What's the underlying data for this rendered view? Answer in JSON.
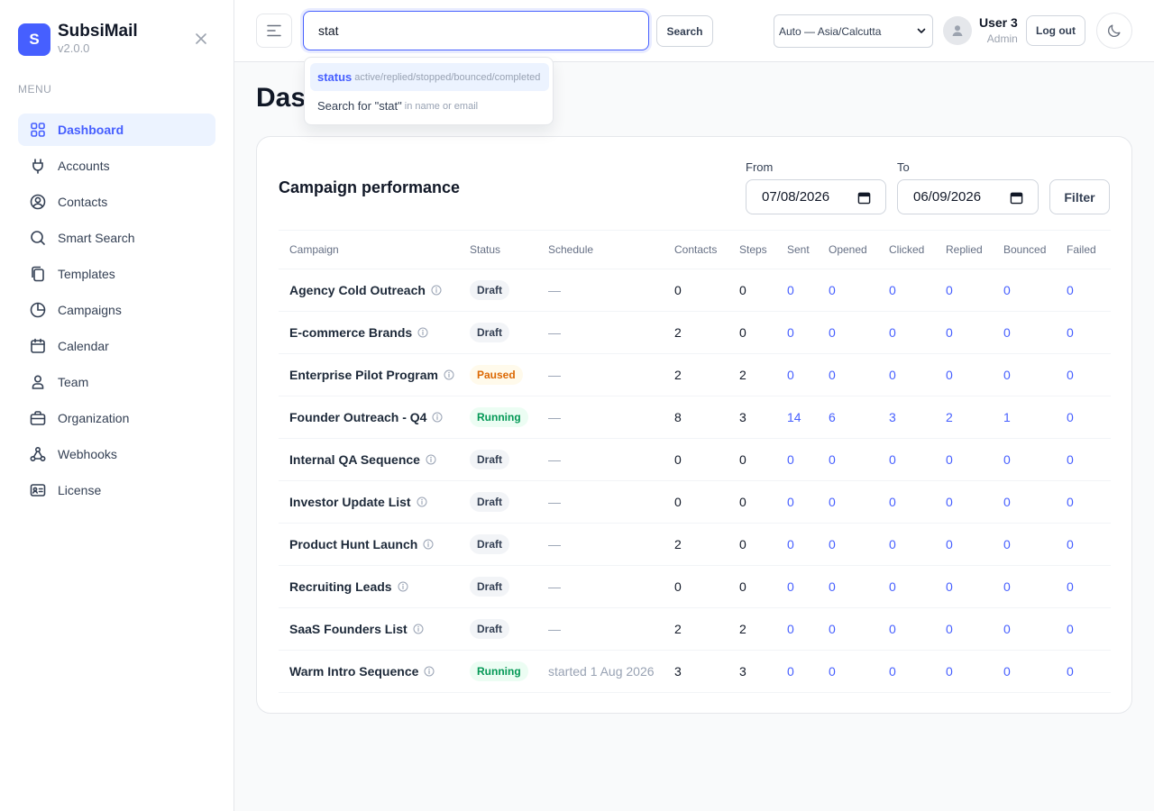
{
  "app": {
    "logo_letter": "S",
    "name": "SubsiMail",
    "version": "v2.0.0"
  },
  "sidebar": {
    "menu_label": "MENU",
    "items": [
      {
        "label": "Dashboard",
        "icon": "grid-icon",
        "active": true
      },
      {
        "label": "Accounts",
        "icon": "plug-icon"
      },
      {
        "label": "Contacts",
        "icon": "user-circle-icon"
      },
      {
        "label": "Smart Search",
        "icon": "search-icon"
      },
      {
        "label": "Templates",
        "icon": "copy-icon"
      },
      {
        "label": "Campaigns",
        "icon": "pie-chart-icon"
      },
      {
        "label": "Calendar",
        "icon": "calendar-icon"
      },
      {
        "label": "Team",
        "icon": "user-icon"
      },
      {
        "label": "Organization",
        "icon": "briefcase-icon"
      },
      {
        "label": "Webhooks",
        "icon": "webhook-icon"
      },
      {
        "label": "License",
        "icon": "id-card-icon"
      }
    ]
  },
  "header": {
    "search_value": "stat",
    "search_button": "Search",
    "timezone": "Auto — Asia/Calcutta",
    "user_name": "User 3",
    "user_role": "Admin",
    "logout": "Log out"
  },
  "search_dropdown": {
    "suggestion_key": "status",
    "suggestion_hint": "active/replied/stopped/bounced/completed",
    "freetext": "Search for \"stat\"",
    "freetext_hint": "in name or email"
  },
  "page": {
    "title": "Dashboard"
  },
  "card": {
    "title": "Campaign performance",
    "from_label": "From",
    "from_value": "07/08/2026",
    "to_label": "To",
    "to_value": "06/09/2026",
    "filter_button": "Filter"
  },
  "table": {
    "columns": [
      "Campaign",
      "Status",
      "Schedule",
      "Contacts",
      "Steps",
      "Sent",
      "Opened",
      "Clicked",
      "Replied",
      "Bounced",
      "Failed"
    ],
    "rows": [
      [
        "Agency Cold Outreach",
        "Draft",
        "—",
        "0",
        "0",
        "0",
        "0",
        "0",
        "0",
        "0",
        "0"
      ],
      [
        "E-commerce Brands",
        "Draft",
        "—",
        "2",
        "0",
        "0",
        "0",
        "0",
        "0",
        "0",
        "0"
      ],
      [
        "Enterprise Pilot Program",
        "Paused",
        "—",
        "2",
        "2",
        "0",
        "0",
        "0",
        "0",
        "0",
        "0"
      ],
      [
        "Founder Outreach - Q4",
        "Running",
        "—",
        "8",
        "3",
        "14",
        "6",
        "3",
        "2",
        "1",
        "0"
      ],
      [
        "Internal QA Sequence",
        "Draft",
        "—",
        "0",
        "0",
        "0",
        "0",
        "0",
        "0",
        "0",
        "0"
      ],
      [
        "Investor Update List",
        "Draft",
        "—",
        "0",
        "0",
        "0",
        "0",
        "0",
        "0",
        "0",
        "0"
      ],
      [
        "Product Hunt Launch",
        "Draft",
        "—",
        "2",
        "0",
        "0",
        "0",
        "0",
        "0",
        "0",
        "0"
      ],
      [
        "Recruiting Leads",
        "Draft",
        "—",
        "0",
        "0",
        "0",
        "0",
        "0",
        "0",
        "0",
        "0"
      ],
      [
        "SaaS Founders List",
        "Draft",
        "—",
        "2",
        "2",
        "0",
        "0",
        "0",
        "0",
        "0",
        "0"
      ],
      [
        "Warm Intro Sequence",
        "Running",
        "started 1 Aug 2026",
        "3",
        "3",
        "0",
        "0",
        "0",
        "0",
        "0",
        "0"
      ]
    ]
  },
  "colors": {
    "accent": "#465fff",
    "running": "#039855",
    "paused": "#dc6803"
  }
}
